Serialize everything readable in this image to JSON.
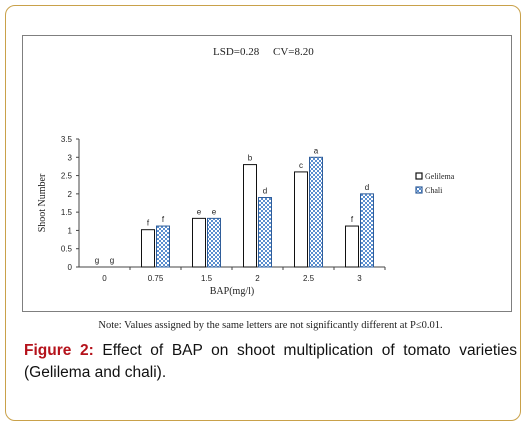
{
  "figure": {
    "label": "Figure 2:",
    "caption": "Effect of BAP on shoot multiplication of tomato varieties (Gelilema and chali).",
    "note": "Note: Values assigned by the same letters are not significantly different at P≤0.01.",
    "stats": "LSD=0.28     CV=8.20"
  },
  "chart_data": {
    "type": "bar",
    "xlabel": "BAP(mg/l)",
    "ylabel": "Shoot Number",
    "categories": [
      "0",
      "0.75",
      "1.5",
      "2",
      "2.5",
      "3"
    ],
    "ylim": [
      0,
      3.5
    ],
    "yticks": [
      "0",
      "0.5",
      "1",
      "1.5",
      "2",
      "2.5",
      "3",
      "3.5"
    ],
    "grid": false,
    "legend_position": "right",
    "series": [
      {
        "name": "Gelilema",
        "values": [
          0,
          1.02,
          1.33,
          2.8,
          2.6,
          1.12
        ],
        "letters": [
          "g",
          "f",
          "e",
          "b",
          "c",
          "f"
        ],
        "fill": "#ffffff",
        "stroke": "#111111"
      },
      {
        "name": "Chali",
        "values": [
          0,
          1.12,
          1.33,
          1.9,
          3.0,
          2.0
        ],
        "letters": [
          "g",
          "f",
          "e",
          "d",
          "a",
          "d"
        ],
        "fill": "#9fc3ea",
        "stroke": "#2f5d9a"
      }
    ]
  }
}
